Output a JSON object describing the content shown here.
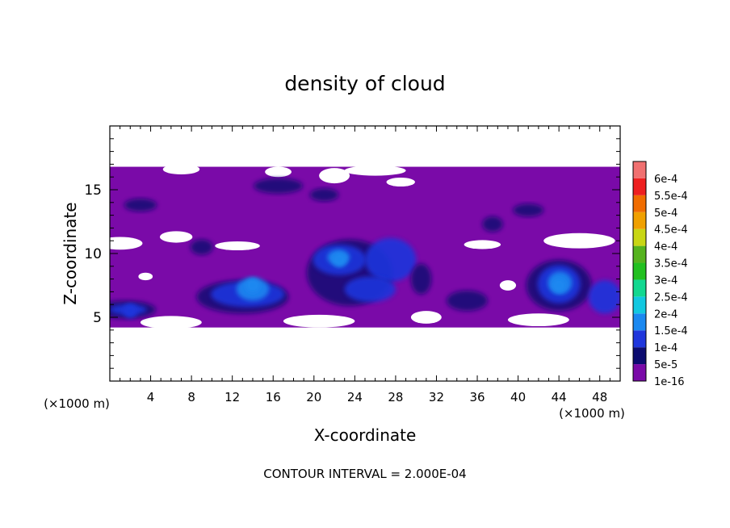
{
  "chart_data": {
    "type": "heatmap",
    "title": "density of cloud",
    "xlabel": "X-coordinate",
    "ylabel": "Z-coordinate",
    "x_unit_label": "(×1000 m)",
    "z_unit_label": "(×1000 m)",
    "footer": "CONTOUR INTERVAL = 2.000E-04",
    "xlim": [
      0,
      50
    ],
    "ylim": [
      0,
      20
    ],
    "x_ticks": [
      4,
      8,
      12,
      16,
      20,
      24,
      28,
      32,
      36,
      40,
      44,
      48
    ],
    "y_ticks": [
      5,
      10,
      15
    ],
    "colorbar": {
      "levels": [
        "1e-16",
        "5e-5",
        "1e-4",
        "1.5e-4",
        "2e-4",
        "2.5e-4",
        "3e-4",
        "3.5e-4",
        "4e-4",
        "4.5e-4",
        "5e-4",
        "5.5e-4",
        "6e-4"
      ],
      "colors": [
        "#7a0aa8",
        "#0c0c70",
        "#1f36dc",
        "#1a88f0",
        "#11c8e0",
        "#12d890",
        "#22c020",
        "#55b31e",
        "#c8d614",
        "#f0a000",
        "#f06c00",
        "#ee2020",
        "#f07070"
      ]
    },
    "cloud_layer_z_range": [
      4.2,
      16.8
    ],
    "features": [
      {
        "name": "core-near-x14",
        "x": 14,
        "z": 7.5,
        "level": "1.5e-4"
      },
      {
        "name": "core-near-x22",
        "x": 22.5,
        "z": 9.5,
        "level": "1.5e-4"
      },
      {
        "name": "core-near-x44",
        "x": 44,
        "z": 7.5,
        "level": "1.5e-4"
      },
      {
        "name": "core-near-x2",
        "x": 2,
        "z": 5.5,
        "level": "1e-4"
      }
    ]
  }
}
